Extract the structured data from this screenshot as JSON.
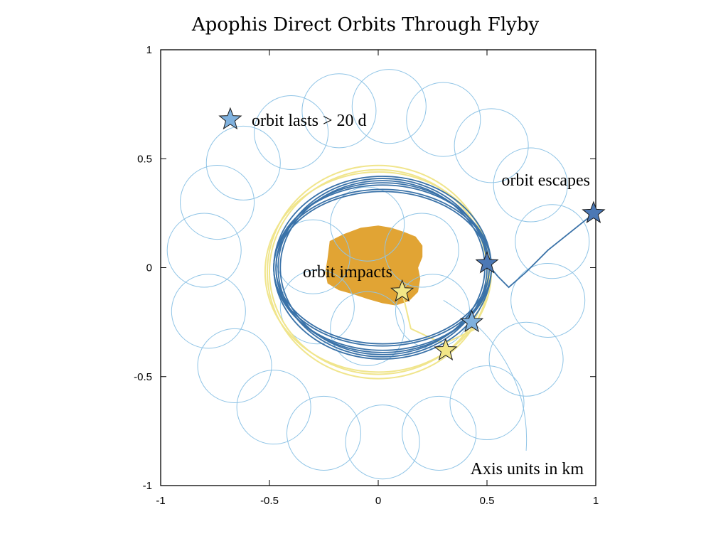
{
  "chart_data": {
    "type": "line",
    "title": "Apophis Direct Orbits Through Flyby",
    "xlabel": "",
    "ylabel": "",
    "units_note": "Axis units in km",
    "xlim": [
      -1,
      1
    ],
    "ylim": [
      -1,
      1
    ],
    "x_ticks": [
      -1,
      -0.5,
      0,
      0.5,
      1
    ],
    "y_ticks": [
      -1,
      -0.5,
      0,
      0.5,
      1
    ],
    "x_tick_labels": [
      "-1",
      "-0.5",
      "0",
      "0.5",
      "1"
    ],
    "y_tick_labels": [
      "-1",
      "-0.5",
      "0",
      "0.5",
      "1"
    ],
    "grid": false,
    "colors": {
      "lasts": "#8fc4e6",
      "escapes": "#3a72a8",
      "impacts": "#f0e58c",
      "asteroid": "#e0a02a",
      "star_lasts": "#7fb1de",
      "star_escapes": "#4c78b5",
      "star_impacts": "#f2e687"
    },
    "asteroid": {
      "name": "Apophis",
      "outline": [
        [
          -0.22,
          0.12
        ],
        [
          -0.16,
          0.15
        ],
        [
          -0.08,
          0.18
        ],
        [
          0.0,
          0.19
        ],
        [
          0.06,
          0.18
        ],
        [
          0.12,
          0.16
        ],
        [
          0.17,
          0.14
        ],
        [
          0.2,
          0.1
        ],
        [
          0.2,
          0.05
        ],
        [
          0.18,
          0.0
        ],
        [
          0.19,
          -0.05
        ],
        [
          0.18,
          -0.11
        ],
        [
          0.14,
          -0.15
        ],
        [
          0.08,
          -0.17
        ],
        [
          0.02,
          -0.16
        ],
        [
          -0.05,
          -0.14
        ],
        [
          -0.11,
          -0.12
        ],
        [
          -0.18,
          -0.1
        ],
        [
          -0.23,
          -0.07
        ],
        [
          -0.24,
          -0.02
        ],
        [
          -0.23,
          0.04
        ]
      ]
    },
    "series": [
      {
        "name": "orbit lasts > 20 d",
        "type": "loops",
        "loop_radius": 0.17,
        "loop_centers": [
          [
            -0.62,
            0.48
          ],
          [
            -0.4,
            0.62
          ],
          [
            -0.18,
            0.72
          ],
          [
            0.05,
            0.74
          ],
          [
            0.3,
            0.68
          ],
          [
            0.52,
            0.56
          ],
          [
            0.7,
            0.38
          ],
          [
            0.8,
            0.12
          ],
          [
            0.78,
            -0.15
          ],
          [
            0.68,
            -0.42
          ],
          [
            0.5,
            -0.62
          ],
          [
            0.28,
            -0.76
          ],
          [
            0.02,
            -0.8
          ],
          [
            -0.25,
            -0.76
          ],
          [
            -0.48,
            -0.64
          ],
          [
            -0.66,
            -0.45
          ],
          [
            -0.78,
            -0.2
          ],
          [
            -0.8,
            0.08
          ],
          [
            -0.74,
            0.3
          ],
          [
            -0.3,
            0.05
          ],
          [
            -0.05,
            0.2
          ],
          [
            0.2,
            0.08
          ],
          [
            0.25,
            -0.2
          ],
          [
            -0.05,
            -0.28
          ],
          [
            -0.28,
            -0.18
          ]
        ],
        "marker": [
          0.43,
          -0.25
        ]
      },
      {
        "name": "orbit escapes",
        "type": "rings",
        "rings": [
          [
            0.5,
            0.42
          ],
          [
            0.49,
            0.39
          ],
          [
            0.5,
            0.36
          ],
          [
            0.48,
            0.41
          ],
          [
            0.5,
            0.38
          ],
          [
            0.49,
            0.35
          ],
          [
            0.47,
            0.4
          ]
        ],
        "escape_path": [
          [
            0.5,
            0.02
          ],
          [
            0.55,
            -0.04
          ],
          [
            0.6,
            -0.09
          ],
          [
            0.68,
            -0.02
          ],
          [
            0.78,
            0.08
          ],
          [
            0.88,
            0.16
          ],
          [
            0.98,
            0.24
          ]
        ],
        "markers": [
          [
            0.5,
            0.02
          ],
          [
            0.99,
            0.25
          ]
        ]
      },
      {
        "name": "orbit impacts",
        "type": "rings",
        "rings": [
          [
            0.51,
            0.49
          ],
          [
            0.5,
            0.47
          ],
          [
            0.52,
            0.46
          ]
        ],
        "impact_path": [
          [
            0.45,
            -0.28
          ],
          [
            0.3,
            -0.35
          ],
          [
            0.15,
            -0.28
          ],
          [
            0.11,
            -0.11
          ]
        ],
        "markers": [
          [
            0.11,
            -0.11
          ],
          [
            0.31,
            -0.38
          ]
        ]
      }
    ],
    "annotations": [
      {
        "text": "orbit lasts > 20 d",
        "at": [
          -0.6,
          0.68
        ],
        "marker": "star",
        "marker_at": [
          -0.68,
          0.68
        ]
      },
      {
        "text": "orbit escapes",
        "at": [
          0.91,
          0.4
        ],
        "align": "right"
      },
      {
        "text": "orbit impacts",
        "at": [
          -0.36,
          -0.02
        ]
      },
      {
        "text": "Axis units in km",
        "at": [
          0.93,
          -0.93
        ],
        "align": "right"
      }
    ]
  }
}
